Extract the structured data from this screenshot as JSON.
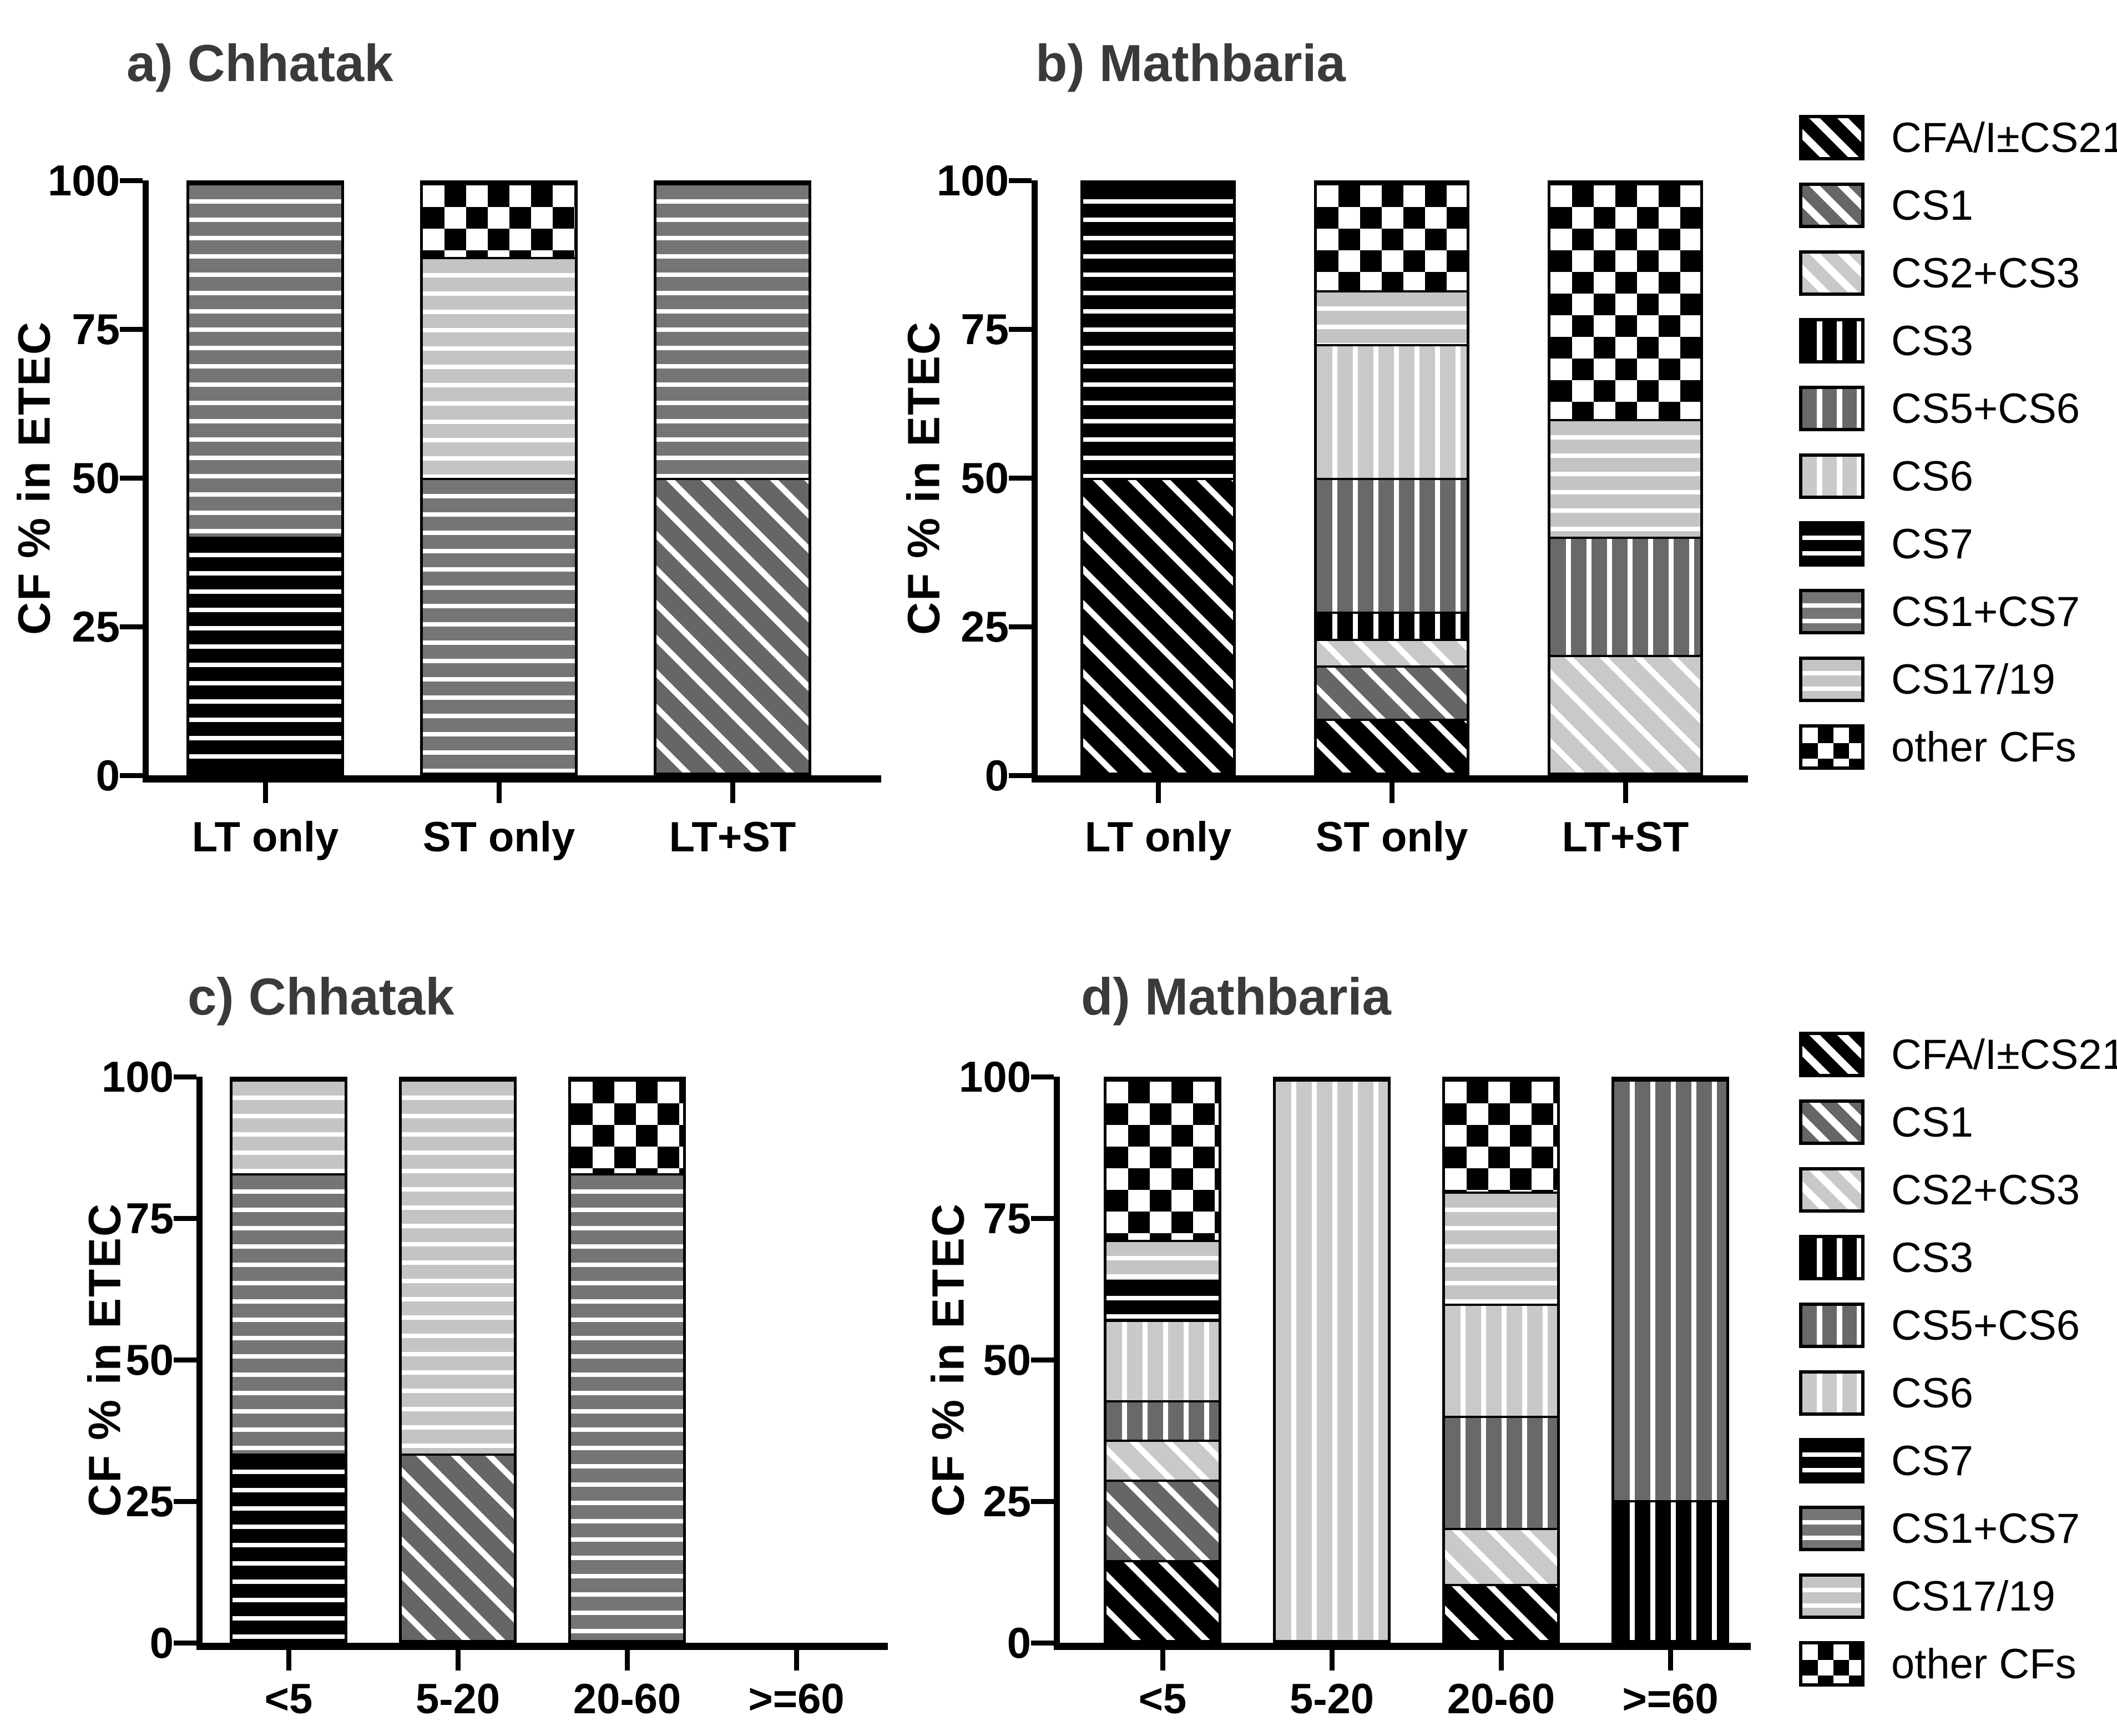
{
  "figure": {
    "y_axis_label": "CF % in ETEC"
  },
  "cf_styles": {
    "CFA/I±CS21": {
      "pattern": "diag",
      "base": "#000000"
    },
    "CS1": {
      "pattern": "diag",
      "base": "#666666"
    },
    "CS2+CS3": {
      "pattern": "diag",
      "base": "#c9c9c9"
    },
    "CS3": {
      "pattern": "vert",
      "base": "#000000"
    },
    "CS5+CS6": {
      "pattern": "vert",
      "base": "#696969"
    },
    "CS6": {
      "pattern": "vert",
      "base": "#c9c9c9"
    },
    "CS7": {
      "pattern": "horiz",
      "base": "#000000"
    },
    "CS1+CS7": {
      "pattern": "horiz",
      "base": "#757575"
    },
    "CS17/19": {
      "pattern": "horiz",
      "base": "#c4c4c4"
    },
    "other CFs": {
      "pattern": "checker",
      "base": "#000000"
    }
  },
  "legends": [
    {
      "id": "top",
      "entries": [
        "CFA/I±CS21",
        "CS1",
        "CS2+CS3",
        "CS3",
        "CS5+CS6",
        "CS6",
        "CS7",
        "CS1+CS7",
        "CS17/19",
        "other CFs"
      ]
    },
    {
      "id": "bottom",
      "entries": [
        "CFA/I±CS21",
        "CS1",
        "CS2+CS3",
        "CS3",
        "CS5+CS6",
        "CS6",
        "CS7",
        "CS1+CS7",
        "CS17/19",
        "other CFs"
      ]
    }
  ],
  "chart_data": [
    {
      "id": "a",
      "type": "bar",
      "stacked": true,
      "title": "a) Chhatak",
      "ylabel": "CF % in ETEC",
      "ylim": [
        0,
        100
      ],
      "yticks": [
        0,
        25,
        50,
        75,
        100
      ],
      "categories": [
        "LT only",
        "ST only",
        "LT+ST"
      ],
      "bars": [
        {
          "category": "LT only",
          "segments": [
            {
              "cf": "CS7",
              "value": 40
            },
            {
              "cf": "CS1+CS7",
              "value": 60
            }
          ]
        },
        {
          "category": "ST only",
          "segments": [
            {
              "cf": "CS1+CS7",
              "value": 50
            },
            {
              "cf": "CS17/19",
              "value": 37.5
            },
            {
              "cf": "other CFs",
              "value": 12.5
            }
          ]
        },
        {
          "category": "LT+ST",
          "segments": [
            {
              "cf": "CS1",
              "value": 50
            },
            {
              "cf": "CS1+CS7",
              "value": 50
            }
          ]
        }
      ]
    },
    {
      "id": "b",
      "type": "bar",
      "stacked": true,
      "title": "b) Mathbaria",
      "ylabel": "CF % in ETEC",
      "ylim": [
        0,
        100
      ],
      "yticks": [
        0,
        25,
        50,
        75,
        100
      ],
      "categories": [
        "LT only",
        "ST only",
        "LT+ST"
      ],
      "bars": [
        {
          "category": "LT only",
          "segments": [
            {
              "cf": "CFA/I±CS21",
              "value": 50
            },
            {
              "cf": "CS7",
              "value": 50
            }
          ]
        },
        {
          "category": "ST only",
          "segments": [
            {
              "cf": "CFA/I±CS21",
              "value": 9.1
            },
            {
              "cf": "CS1",
              "value": 9.1
            },
            {
              "cf": "CS2+CS3",
              "value": 4.5
            },
            {
              "cf": "CS3",
              "value": 4.6
            },
            {
              "cf": "CS5+CS6",
              "value": 22.7
            },
            {
              "cf": "CS6",
              "value": 22.7
            },
            {
              "cf": "CS17/19",
              "value": 9.1
            },
            {
              "cf": "other CFs",
              "value": 18.2
            }
          ]
        },
        {
          "category": "LT+ST",
          "segments": [
            {
              "cf": "CS2+CS3",
              "value": 20
            },
            {
              "cf": "CS5+CS6",
              "value": 20
            },
            {
              "cf": "CS17/19",
              "value": 20
            },
            {
              "cf": "other CFs",
              "value": 40
            }
          ]
        }
      ]
    },
    {
      "id": "c",
      "type": "bar",
      "stacked": true,
      "title": "c) Chhatak",
      "ylabel": "CF % in ETEC",
      "ylim": [
        0,
        100
      ],
      "yticks": [
        0,
        25,
        50,
        75,
        100
      ],
      "categories": [
        "<5",
        "5-20",
        "20-60",
        ">=60"
      ],
      "bars": [
        {
          "category": "<5",
          "segments": [
            {
              "cf": "CS7",
              "value": 33.3
            },
            {
              "cf": "CS1+CS7",
              "value": 50
            },
            {
              "cf": "CS17/19",
              "value": 16.7
            }
          ]
        },
        {
          "category": "5-20",
          "segments": [
            {
              "cf": "CS1",
              "value": 33.3
            },
            {
              "cf": "CS17/19",
              "value": 66.7
            }
          ]
        },
        {
          "category": "20-60",
          "segments": [
            {
              "cf": "CS1+CS7",
              "value": 83.3
            },
            {
              "cf": "other CFs",
              "value": 16.7
            }
          ]
        },
        {
          "category": ">=60",
          "segments": []
        }
      ]
    },
    {
      "id": "d",
      "type": "bar",
      "stacked": true,
      "title": "d) Mathbaria",
      "ylabel": "CF % in ETEC",
      "ylim": [
        0,
        100
      ],
      "yticks": [
        0,
        25,
        50,
        75,
        100
      ],
      "categories": [
        "<5",
        "5-20",
        "20-60",
        ">=60"
      ],
      "bars": [
        {
          "category": "<5",
          "segments": [
            {
              "cf": "CFA/I±CS21",
              "value": 14.3
            },
            {
              "cf": "CS1",
              "value": 14.3
            },
            {
              "cf": "CS2+CS3",
              "value": 7.1
            },
            {
              "cf": "CS5+CS6",
              "value": 7.1
            },
            {
              "cf": "CS6",
              "value": 14.3
            },
            {
              "cf": "CS7",
              "value": 7.2
            },
            {
              "cf": "CS17/19",
              "value": 7.1
            },
            {
              "cf": "other CFs",
              "value": 28.6
            }
          ]
        },
        {
          "category": "5-20",
          "segments": [
            {
              "cf": "CS6",
              "value": 100
            }
          ]
        },
        {
          "category": "20-60",
          "segments": [
            {
              "cf": "CFA/I±CS21",
              "value": 10
            },
            {
              "cf": "CS2+CS3",
              "value": 10
            },
            {
              "cf": "CS5+CS6",
              "value": 20
            },
            {
              "cf": "CS6",
              "value": 20
            },
            {
              "cf": "CS17/19",
              "value": 20
            },
            {
              "cf": "other CFs",
              "value": 20
            }
          ]
        },
        {
          "category": ">=60",
          "segments": [
            {
              "cf": "CS3",
              "value": 25
            },
            {
              "cf": "CS5+CS6",
              "value": 75
            }
          ]
        }
      ]
    }
  ]
}
